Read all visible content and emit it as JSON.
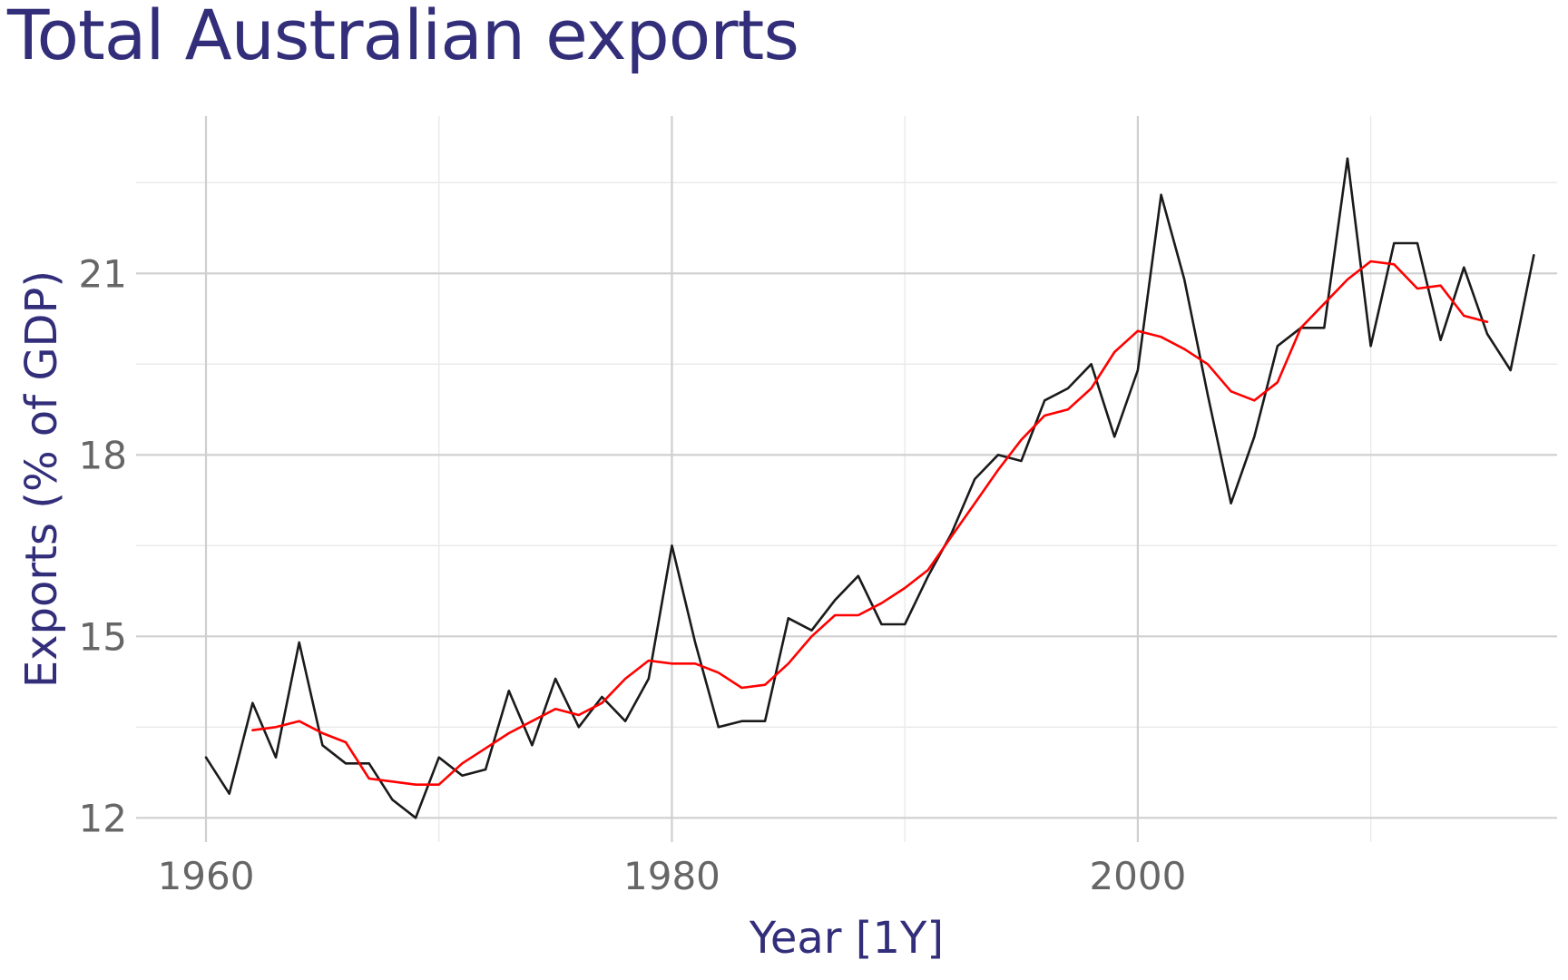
{
  "chart_data": {
    "type": "line",
    "title": "Total Australian exports",
    "xlabel": "Year [1Y]",
    "ylabel": "Exports (% of GDP)",
    "xlim": [
      1957,
      2018
    ],
    "ylim": [
      11.6,
      23.6
    ],
    "x_ticks": [
      1960,
      1980,
      2000
    ],
    "x_minor_ticks": [
      1970,
      1990,
      2010
    ],
    "y_ticks": [
      12,
      15,
      18,
      21
    ],
    "y_minor_ticks": [
      13.5,
      16.5,
      19.5,
      22.5
    ],
    "grid": true,
    "legend": "none",
    "series": [
      {
        "color": "#1a1a1a",
        "x": [
          1960,
          1961,
          1962,
          1963,
          1964,
          1965,
          1966,
          1967,
          1968,
          1969,
          1970,
          1971,
          1972,
          1973,
          1974,
          1975,
          1976,
          1977,
          1978,
          1979,
          1980,
          1981,
          1982,
          1983,
          1984,
          1985,
          1986,
          1987,
          1988,
          1989,
          1990,
          1991,
          1992,
          1993,
          1994,
          1995,
          1996,
          1997,
          1998,
          1999,
          2000,
          2001,
          2002,
          2003,
          2004,
          2005,
          2006,
          2007,
          2008,
          2009,
          2010,
          2011,
          2012,
          2013,
          2014,
          2015,
          2016,
          2017
        ],
        "values": [
          13.0,
          12.4,
          13.9,
          13.0,
          14.9,
          13.2,
          12.9,
          12.9,
          12.3,
          12.0,
          13.0,
          12.7,
          12.8,
          14.1,
          13.2,
          14.3,
          13.5,
          14.0,
          13.6,
          14.3,
          16.5,
          14.9,
          13.5,
          13.6,
          13.6,
          15.3,
          15.1,
          15.6,
          16.0,
          15.2,
          15.2,
          16.0,
          16.7,
          17.6,
          18.0,
          17.9,
          18.9,
          19.1,
          19.5,
          18.3,
          19.4,
          22.3,
          20.9,
          19.0,
          17.2,
          18.3,
          19.8,
          20.1,
          20.1,
          22.9,
          19.8,
          21.5,
          21.5,
          19.9,
          21.1,
          20.0,
          19.4,
          21.3
        ]
      },
      {
        "color": "#ff0000",
        "x": [
          1962,
          1963,
          1964,
          1965,
          1966,
          1967,
          1968,
          1969,
          1970,
          1971,
          1972,
          1973,
          1974,
          1975,
          1976,
          1977,
          1978,
          1979,
          1980,
          1981,
          1982,
          1983,
          1984,
          1985,
          1986,
          1987,
          1988,
          1989,
          1990,
          1991,
          1992,
          1993,
          1994,
          1995,
          1996,
          1997,
          1998,
          1999,
          2000,
          2001,
          2002,
          2003,
          2004,
          2005,
          2006,
          2007,
          2008,
          2009,
          2010,
          2011,
          2012,
          2013,
          2014,
          2015
        ],
        "values": [
          13.45,
          13.5,
          13.6,
          13.4,
          13.25,
          12.65,
          12.6,
          12.55,
          12.55,
          12.9,
          13.15,
          13.4,
          13.6,
          13.8,
          13.7,
          13.9,
          14.3,
          14.6,
          14.55,
          14.55,
          14.4,
          14.15,
          14.2,
          14.55,
          15.0,
          15.35,
          15.35,
          15.55,
          15.8,
          16.1,
          16.65,
          17.2,
          17.75,
          18.25,
          18.65,
          18.75,
          19.1,
          19.7,
          20.05,
          19.95,
          19.75,
          19.5,
          19.05,
          18.9,
          19.2,
          20.1,
          20.5,
          20.9,
          21.2,
          21.15,
          20.75,
          20.8,
          20.3,
          20.2
        ]
      }
    ]
  }
}
